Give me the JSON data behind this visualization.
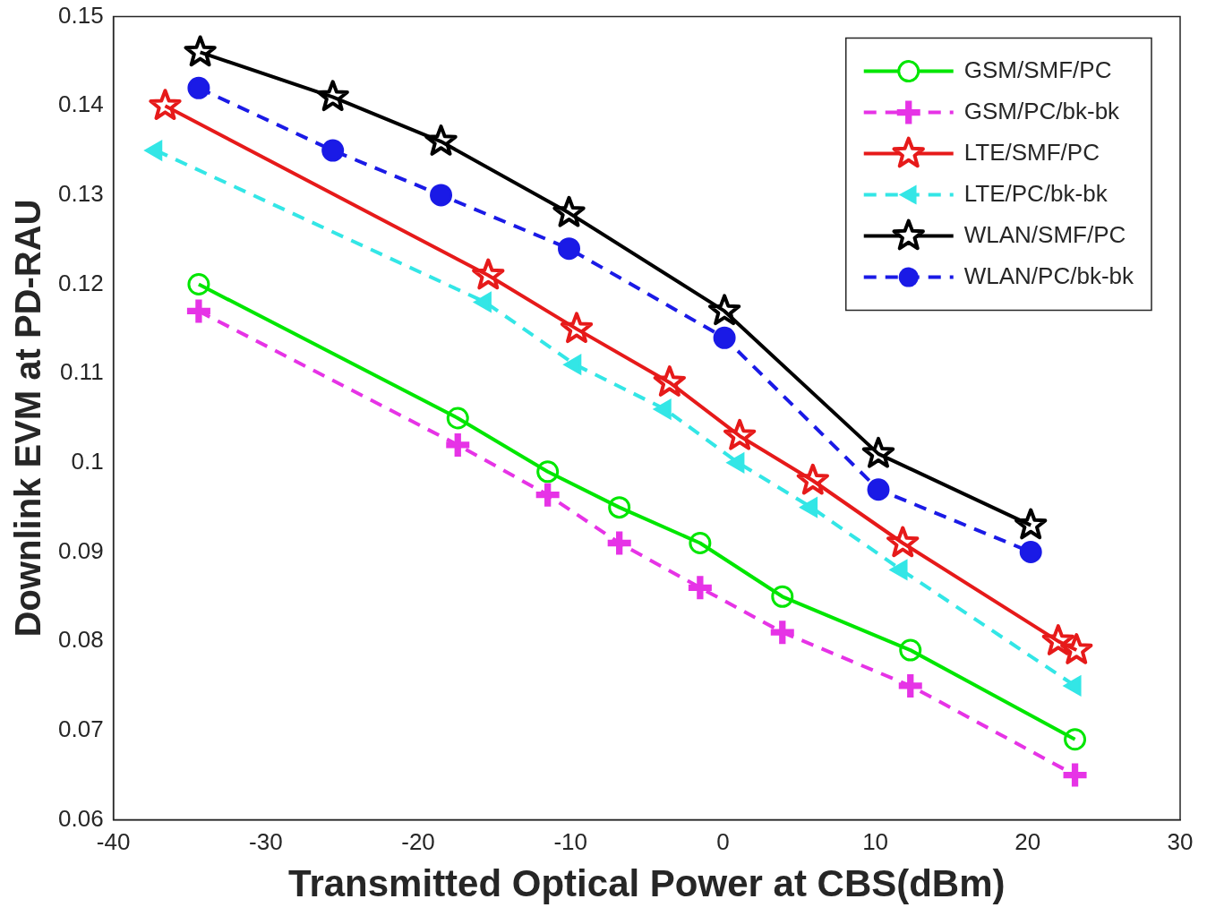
{
  "chart_data": {
    "type": "line",
    "xlabel": "Transmitted Optical Power at CBS(dBm)",
    "ylabel": "Downlink EVM at PD-RAU",
    "xlim": [
      -40,
      30
    ],
    "xticks": [
      -40,
      -30,
      -20,
      -10,
      0,
      10,
      20,
      30
    ],
    "ylim": [
      0.06,
      0.15
    ],
    "yticks": [
      0.06,
      0.07,
      0.08,
      0.09,
      0.1,
      0.11,
      0.12,
      0.13,
      0.14,
      0.15
    ],
    "grid": false,
    "legend": "top right",
    "series": [
      {
        "name": "GSM/SMF/PC",
        "color": "#00e600",
        "marker": "circle",
        "line_style": "solid",
        "x": [
          -34.4,
          -17.4,
          -11.5,
          -6.8,
          -1.5,
          3.9,
          12.3,
          23.1
        ],
        "values": [
          0.12,
          0.105,
          0.099,
          0.095,
          0.091,
          0.085,
          0.079,
          0.069
        ]
      },
      {
        "name": "GSM/PC/bk-bk",
        "color": "#e633e6",
        "marker": "cross",
        "line_style": "dashed",
        "x": [
          -34.4,
          -17.4,
          -11.5,
          -6.8,
          -1.5,
          3.9,
          12.3,
          23.1
        ],
        "values": [
          0.117,
          0.102,
          0.0964,
          0.091,
          0.086,
          0.081,
          0.075,
          0.065
        ]
      },
      {
        "name": "LTE/SMF/PC",
        "color": "#e61a1a",
        "marker": "star",
        "line_style": "solid",
        "x": [
          -36.6,
          -15.4,
          -9.6,
          -3.5,
          1.1,
          5.9,
          11.8,
          22,
          23.2
        ],
        "values": [
          0.14,
          0.121,
          0.115,
          0.109,
          0.103,
          0.098,
          0.091,
          0.08,
          0.079
        ]
      },
      {
        "name": "LTE/PC/bk-bk",
        "color": "#33e6e6",
        "marker": "triangle",
        "line_style": "dashed",
        "x": [
          -37.2,
          -15.6,
          -9.7,
          -3.8,
          1,
          5.8,
          11.7,
          23.1
        ],
        "values": [
          0.135,
          0.118,
          0.111,
          0.106,
          0.1,
          0.095,
          0.088,
          0.075
        ]
      },
      {
        "name": "WLAN/SMF/PC",
        "color": "#000000",
        "marker": "star",
        "line_style": "solid",
        "x": [
          -34.3,
          -25.6,
          -18.5,
          -10.1,
          0.1,
          10.2,
          20.2
        ],
        "values": [
          0.146,
          0.141,
          0.136,
          0.128,
          0.117,
          0.101,
          0.093
        ]
      },
      {
        "name": "WLAN/PC/bk-bk",
        "color": "#1a1ae6",
        "marker": "circle",
        "line_style": "dashed",
        "x": [
          -34.4,
          -25.6,
          -18.5,
          -10.1,
          0.1,
          10.2,
          20.2
        ],
        "values": [
          0.142,
          0.135,
          0.13,
          0.124,
          0.114,
          0.097,
          0.09
        ]
      }
    ]
  }
}
